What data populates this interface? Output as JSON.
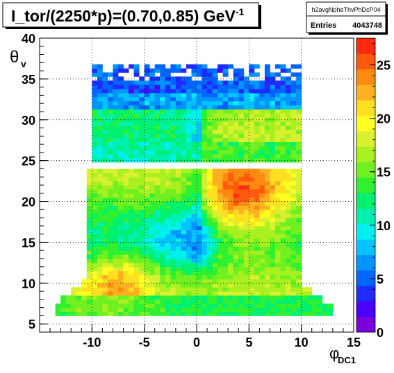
{
  "chart_data": {
    "type": "heatmap",
    "title_main": "I_tor/(2250*p)=(0.70,0.85) GeV",
    "title_sup": "-1",
    "stats": {
      "name": "h2avgNpheThvPhDcP04",
      "entries_label": "Entries",
      "entries_value": "4043748"
    },
    "x_axis": {
      "label": "φ",
      "label_sub": "DC1",
      "range": [
        -15,
        15
      ],
      "ticks": [
        -10,
        -5,
        0,
        5,
        10,
        15
      ]
    },
    "y_axis": {
      "label": "θ",
      "label_sub": "v",
      "range": [
        4,
        40
      ],
      "ticks": [
        5,
        10,
        15,
        20,
        25,
        30,
        35,
        40
      ]
    },
    "z_axis": {
      "range": [
        0,
        27.5
      ],
      "ticks": [
        0,
        5,
        10,
        15,
        20,
        25
      ]
    },
    "grid": true,
    "palette": [
      "#7a00e0",
      "#4a00ff",
      "#1f2bff",
      "#0066ff",
      "#0094ff",
      "#00c4ff",
      "#00f0f0",
      "#00f0b0",
      "#00f070",
      "#30f030",
      "#70f020",
      "#a8f020",
      "#d8f030",
      "#ffff20",
      "#ffe020",
      "#ffb020",
      "#ff8a10",
      "#ff5a10",
      "#ff2a10"
    ],
    "bands": [
      {
        "y_range": [
          24.8,
          36.5
        ],
        "x_range": [
          -10,
          10
        ],
        "description_values": "low"
      },
      {
        "y_range": [
          6,
          23.7
        ],
        "x_range": [
          -13.5,
          13
        ],
        "description_values": "high"
      }
    ]
  }
}
